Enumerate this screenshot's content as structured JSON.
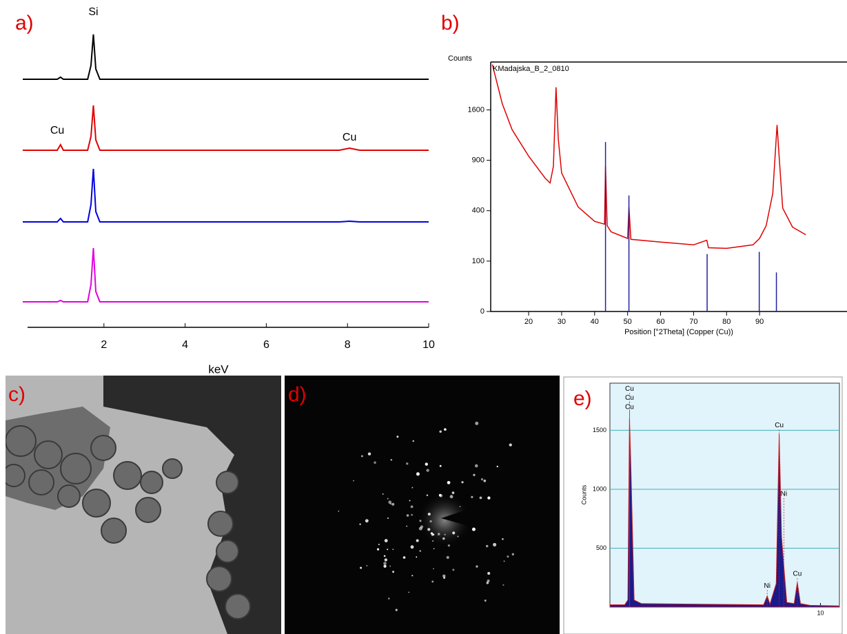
{
  "chart_data": [
    {
      "type": "line",
      "label": "a)",
      "xlabel": "keV",
      "xlim": [
        0,
        10
      ],
      "xticks": [
        2,
        4,
        6,
        8,
        10
      ],
      "ylim": [
        0,
        100
      ],
      "x": [
        0,
        0.85,
        0.93,
        1.0,
        1.6,
        1.68,
        1.74,
        1.8,
        1.9,
        7.8,
        8.05,
        8.3,
        10
      ],
      "series": [
        {
          "color": "#000000",
          "values": [
            0,
            0,
            3,
            0,
            0,
            20,
            65,
            15,
            0,
            0,
            0,
            0,
            0
          ],
          "labels": [
            {
              "text": "Si",
              "x": 1.74,
              "y": 97
            }
          ]
        },
        {
          "color": "#e00000",
          "values": [
            0,
            0,
            8,
            0,
            0,
            20,
            65,
            15,
            0,
            0,
            3,
            0,
            0
          ],
          "labels": [
            {
              "text": "Cu",
              "x": 0.85,
              "y": 28
            },
            {
              "text": "Cu",
              "x": 8.05,
              "y": 18
            }
          ]
        },
        {
          "color": "#0000e0",
          "values": [
            0,
            0,
            5,
            0,
            0,
            25,
            77,
            15,
            0,
            0,
            1,
            0,
            0
          ],
          "labels": []
        },
        {
          "color": "#e000e0",
          "values": [
            0,
            0,
            2,
            0,
            0,
            25,
            78,
            15,
            0,
            0,
            0,
            0,
            0
          ],
          "labels": []
        }
      ]
    },
    {
      "type": "xrd",
      "label": "b)",
      "ylabel": "Counts",
      "xlabel": "Position [°2Theta] (Copper (Cu))",
      "yscale": "sqrt",
      "xlim": [
        8.5,
        116.5
      ],
      "xticks": [
        20,
        30,
        40,
        50,
        60,
        70,
        80,
        90
      ],
      "ylim": [
        0,
        2450
      ],
      "yticks": [
        0,
        100,
        400,
        900,
        1600
      ],
      "x": [
        9,
        12,
        15,
        20,
        25,
        26.5,
        27.5,
        28.3,
        29,
        30,
        35,
        40,
        43,
        43.3,
        43.8,
        45,
        50,
        50.4,
        51,
        60,
        70,
        74,
        74.5,
        80,
        88,
        90,
        92,
        94,
        95.3,
        96,
        97,
        100,
        104
      ],
      "series": [
        {
          "name": "KMadajska_B_2_0810",
          "color": "#e00000",
          "values": [
            2400,
            1700,
            1300,
            950,
            700,
            650,
            830,
            1980,
            1170,
            755,
            430,
            320,
            300,
            830,
            290,
            250,
            210,
            430,
            205,
            190,
            175,
            200,
            160,
            157,
            175,
            210,
            290,
            550,
            1370,
            900,
            420,
            280,
            232
          ]
        },
        {
          "type": "stick",
          "color": "#2020a0",
          "x": [
            43.3,
            50.4,
            74.1,
            89.9,
            95.1
          ],
          "values": [
            1130,
            530,
            130,
            140,
            60
          ]
        }
      ]
    },
    {
      "type": "eds",
      "label": "e)",
      "ylabel": "Counts",
      "xlim": [
        0,
        10.9
      ],
      "xticks": [
        10
      ],
      "ylim": [
        0,
        1900
      ],
      "yticks": [
        500,
        1000,
        1500
      ],
      "grid": true,
      "x": [
        0,
        0.7,
        0.85,
        0.93,
        1.0,
        1.15,
        1.5,
        7.3,
        7.47,
        7.6,
        7.9,
        8.04,
        8.15,
        8.26,
        8.4,
        8.75,
        8.9,
        9.05,
        9.5,
        10.9
      ],
      "values": [
        20,
        20,
        60,
        1600,
        1150,
        60,
        30,
        20,
        95,
        25,
        200,
        1470,
        600,
        350,
        40,
        30,
        210,
        30,
        15,
        10
      ],
      "annotations": [
        {
          "text": "Cu",
          "x": 0.93,
          "y": 1850
        },
        {
          "text": "Cu",
          "x": 0.93,
          "y": 1775
        },
        {
          "text": "Cu",
          "x": 0.93,
          "y": 1695
        },
        {
          "text": "Cu",
          "x": 8.04,
          "y": 1540
        },
        {
          "text": "Ni",
          "x": 8.26,
          "y": 960
        },
        {
          "text": "Ni",
          "x": 7.47,
          "y": 180
        },
        {
          "text": "Cu",
          "x": 8.9,
          "y": 280
        }
      ]
    }
  ],
  "panels": {
    "c": {
      "label": "c)"
    },
    "d": {
      "label": "d)"
    }
  }
}
